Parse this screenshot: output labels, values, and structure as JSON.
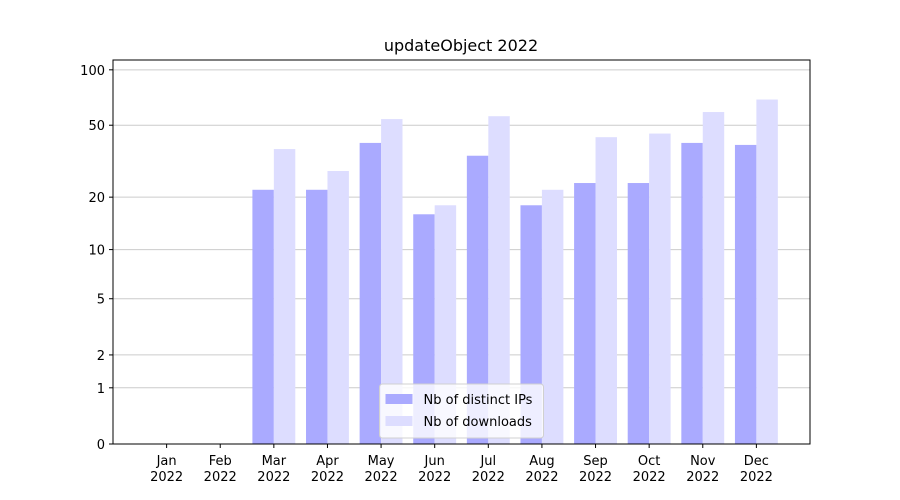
{
  "chart_data": {
    "type": "bar",
    "title": "updateObject 2022",
    "categories": [
      "Jan\n2022",
      "Feb\n2022",
      "Mar\n2022",
      "Apr\n2022",
      "May\n2022",
      "Jun\n2022",
      "Jul\n2022",
      "Aug\n2022",
      "Sep\n2022",
      "Oct\n2022",
      "Nov\n2022",
      "Dec\n2022"
    ],
    "series": [
      {
        "name": "Nb of distinct IPs",
        "color": "#aaaaff",
        "values": [
          0,
          0,
          22,
          22,
          40,
          16,
          34,
          18,
          24,
          24,
          40,
          39
        ]
      },
      {
        "name": "Nb of downloads",
        "color": "#ddddff",
        "values": [
          0,
          0,
          37,
          28,
          54,
          18,
          56,
          22,
          43,
          45,
          59,
          69
        ]
      }
    ],
    "y_scale": "symlog",
    "ylim": [
      0,
      113
    ],
    "yticks": [
      0,
      1,
      2,
      5,
      10,
      20,
      50,
      100
    ],
    "grid": true,
    "legend_position": "lower center"
  }
}
